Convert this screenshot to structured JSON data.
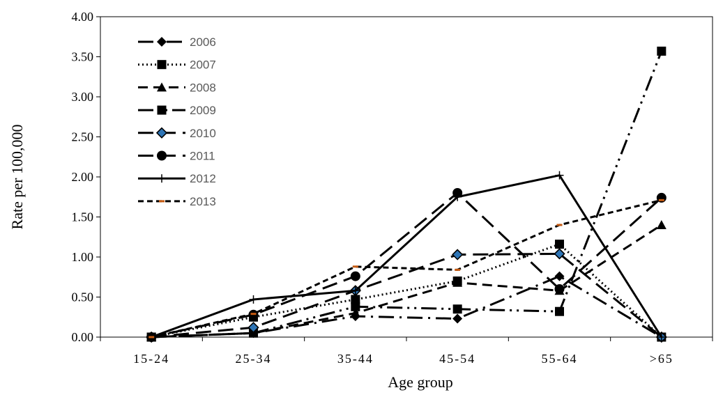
{
  "chart_data": {
    "type": "line",
    "title": "",
    "xlabel": "Age group",
    "ylabel": "Rate per 100,000",
    "categories": [
      "15-24",
      "25-34",
      "35-44",
      "45-54",
      "55-64",
      ">65"
    ],
    "ylim": [
      0,
      4
    ],
    "yticks": [
      "0.00",
      "0.50",
      "1.00",
      "1.50",
      "2.00",
      "2.50",
      "3.00",
      "3.50",
      "4.00"
    ],
    "grid": false,
    "legend_position": "top-left",
    "series": [
      {
        "name": "2006",
        "values": [
          0.0,
          0.05,
          0.26,
          0.23,
          0.76,
          0.0
        ],
        "marker": "diamond",
        "dash": "long-dash-dot",
        "color": "#000000"
      },
      {
        "name": "2007",
        "values": [
          0.0,
          0.25,
          0.47,
          0.7,
          1.16,
          0.0
        ],
        "marker": "square",
        "dash": "dotted",
        "color": "#000000"
      },
      {
        "name": "2008",
        "values": [
          0.0,
          0.05,
          0.3,
          0.68,
          0.58,
          1.4
        ],
        "marker": "triangle",
        "dash": "dashed",
        "color": "#000000"
      },
      {
        "name": "2009",
        "values": [
          0.0,
          0.05,
          0.38,
          0.35,
          0.32,
          3.57
        ],
        "marker": "square",
        "dash": "long-dash-dot-dot",
        "color": "#000000"
      },
      {
        "name": "2010",
        "values": [
          0.0,
          0.12,
          0.58,
          1.03,
          1.04,
          0.0
        ],
        "marker": "diamond-blue",
        "dash": "long-dash",
        "color": "#000000",
        "marker_fill": "#2e75b6"
      },
      {
        "name": "2011",
        "values": [
          0.0,
          0.28,
          0.76,
          1.8,
          0.6,
          1.74
        ],
        "marker": "circle",
        "dash": "long-dash",
        "color": "#000000"
      },
      {
        "name": "2012",
        "values": [
          0.0,
          0.47,
          0.58,
          1.75,
          2.02,
          0.0
        ],
        "marker": "plus",
        "dash": "solid",
        "color": "#000000"
      },
      {
        "name": "2013",
        "values": [
          0.0,
          0.29,
          0.88,
          0.84,
          1.4,
          1.71
        ],
        "marker": "dash-orange",
        "dash": "short-dash",
        "color": "#000000",
        "marker_fill": "#c55a11"
      }
    ]
  }
}
